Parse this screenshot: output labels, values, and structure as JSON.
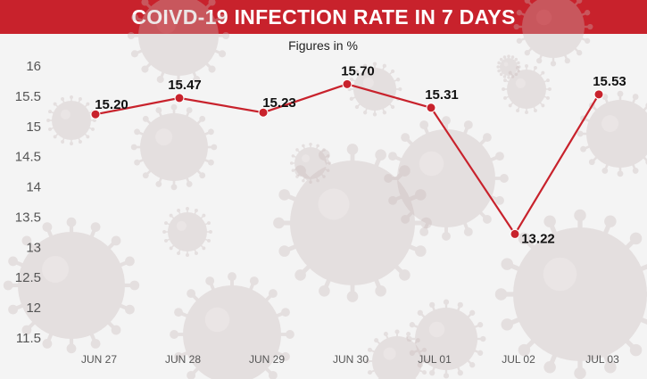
{
  "header": {
    "title": "COIVD-19 INFECTION RATE IN 7 DAYS"
  },
  "chart_data": {
    "type": "line",
    "title": "COIVD-19 INFECTION RATE IN 7 DAYS",
    "subtitle": "Figures in %",
    "categories": [
      "JUN 27",
      "JUN 28",
      "JUN 29",
      "JUN 30",
      "JUL 01",
      "JUL 02",
      "JUL 03"
    ],
    "values": [
      15.2,
      15.47,
      15.23,
      15.7,
      15.31,
      13.22,
      15.53
    ],
    "value_labels": [
      "15.20",
      "15.47",
      "15.23",
      "15.70",
      "15.31",
      "13.22",
      "15.53"
    ],
    "y_ticks": [
      "11.5",
      "12",
      "12.5",
      "13",
      "13.5",
      "14",
      "14.5",
      "15",
      "15.5",
      "16"
    ],
    "ylim": [
      11.5,
      16
    ],
    "xlabel": "",
    "ylabel": "",
    "grid": false,
    "legend": "none",
    "colors": {
      "line": "#c8222c",
      "title_bar": "#c8222c",
      "virus": "#c9b9b9"
    }
  }
}
